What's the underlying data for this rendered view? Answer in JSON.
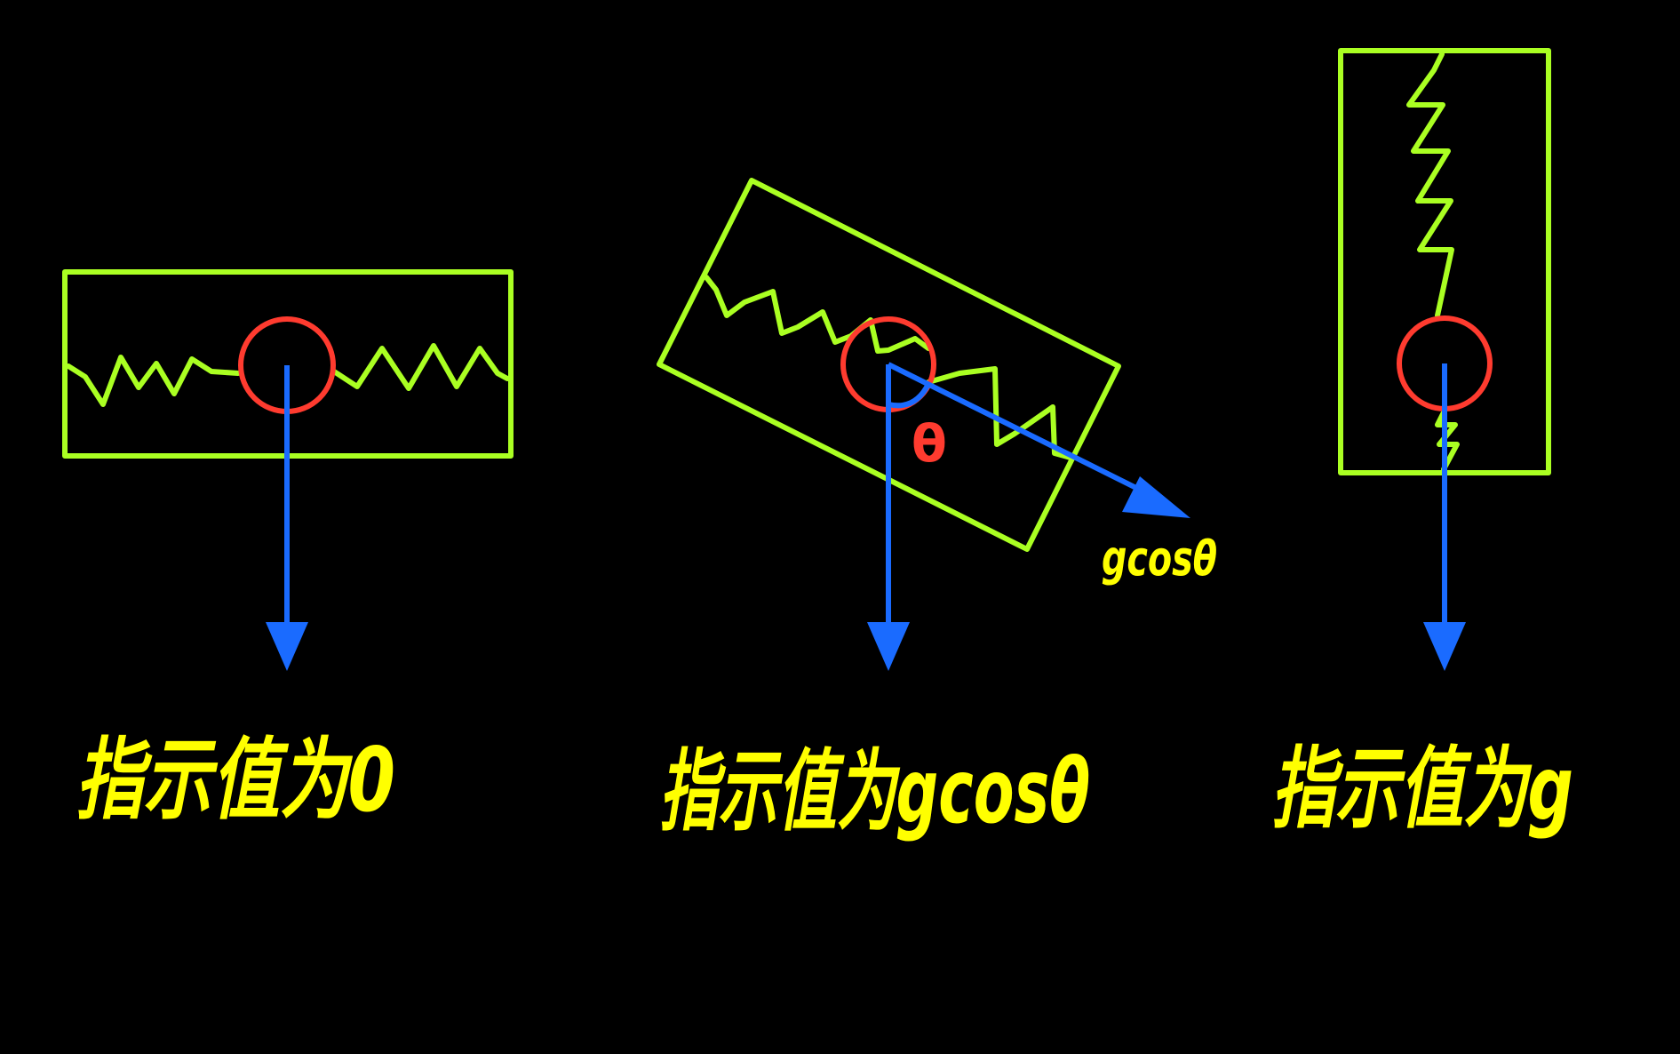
{
  "colors": {
    "background": "#000000",
    "frame": "#AAFF22",
    "spring": "#AAFF22",
    "mass": "#FF3B2F",
    "arrow": "#1A6BFF",
    "text": "#FFFF00",
    "angle": "#FF3B2F"
  },
  "panels": [
    {
      "orientation": "horizontal",
      "caption": "指示值为0"
    },
    {
      "orientation": "inclined",
      "caption": "指示值为gcosθ",
      "angle_label": "θ",
      "component_label": "gcosθ"
    },
    {
      "orientation": "vertical",
      "caption": "指示值为g"
    }
  ]
}
